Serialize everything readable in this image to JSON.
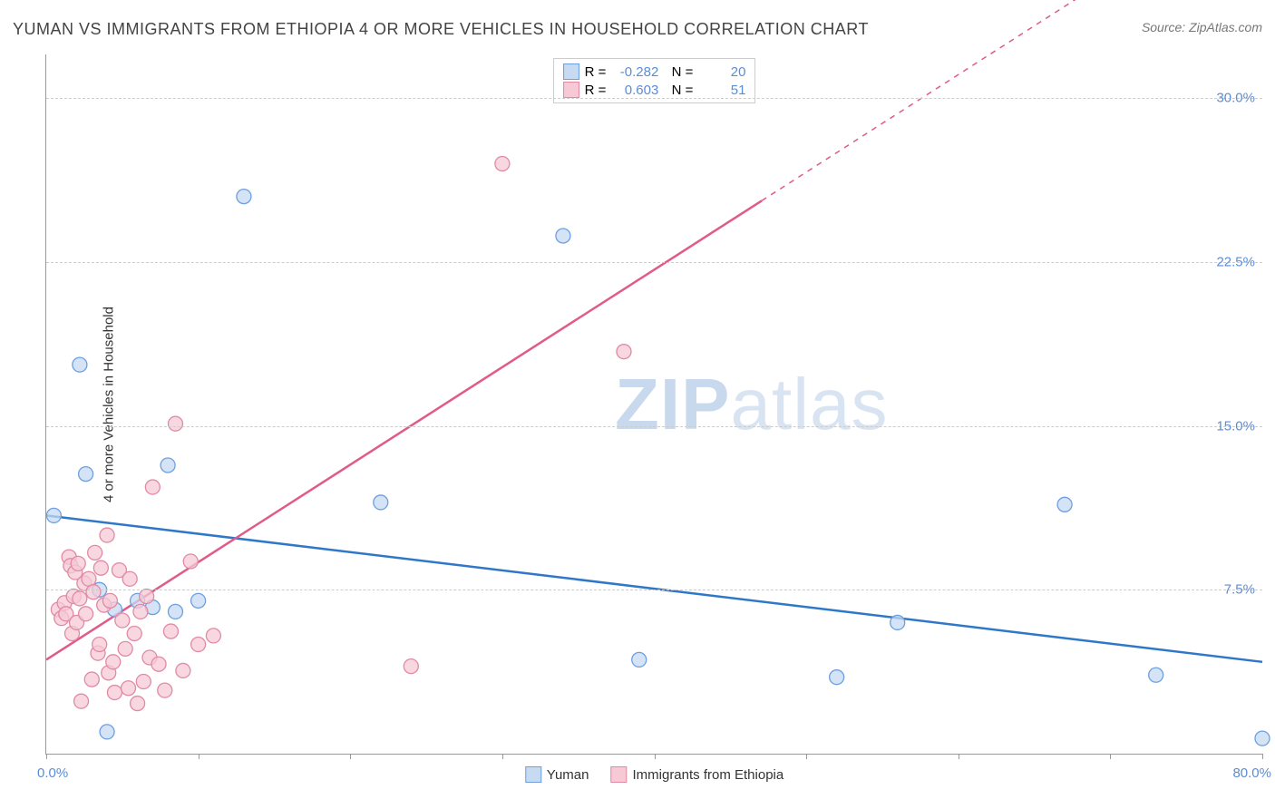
{
  "title": "YUMAN VS IMMIGRANTS FROM ETHIOPIA 4 OR MORE VEHICLES IN HOUSEHOLD CORRELATION CHART",
  "source": "Source: ZipAtlas.com",
  "ylabel": "4 or more Vehicles in Household",
  "watermark": {
    "prefix": "ZIP",
    "suffix": "atlas"
  },
  "chart": {
    "type": "scatter",
    "xlim": [
      0,
      80
    ],
    "ylim": [
      0,
      32
    ],
    "xticks_minor_pct": [
      0,
      10,
      20,
      30,
      40,
      50,
      60,
      70,
      80
    ],
    "yticks": [
      7.5,
      15.0,
      22.5,
      30.0
    ],
    "ytick_labels": [
      "7.5%",
      "15.0%",
      "22.5%",
      "30.0%"
    ],
    "xlabel_min": "0.0%",
    "xlabel_max": "80.0%",
    "background_color": "#ffffff",
    "grid_color": "#cccccc",
    "series": [
      {
        "name": "Yuman",
        "marker_fill": "#c6daf2",
        "marker_stroke": "#6d9fe0",
        "marker_r": 8,
        "line_color": "#2f77c9",
        "line_width": 2.5,
        "r_value": "-0.282",
        "n_value": "20",
        "trend": {
          "x0": 0,
          "y0": 10.9,
          "x1": 80,
          "y1": 4.2
        },
        "points": [
          [
            0.5,
            10.9
          ],
          [
            2.2,
            17.8
          ],
          [
            2.6,
            12.8
          ],
          [
            4.0,
            1.0
          ],
          [
            3.5,
            7.5
          ],
          [
            4.5,
            6.6
          ],
          [
            6.0,
            7.0
          ],
          [
            7.0,
            6.7
          ],
          [
            8.0,
            13.2
          ],
          [
            8.5,
            6.5
          ],
          [
            10.0,
            7.0
          ],
          [
            13.0,
            25.5
          ],
          [
            22.0,
            11.5
          ],
          [
            34.0,
            23.7
          ],
          [
            39.0,
            4.3
          ],
          [
            52.0,
            3.5
          ],
          [
            56.0,
            6.0
          ],
          [
            67.0,
            11.4
          ],
          [
            73.0,
            3.6
          ],
          [
            80.0,
            0.7
          ]
        ]
      },
      {
        "name": "Immigrants from Ethiopia",
        "marker_fill": "#f6c9d5",
        "marker_stroke": "#e18aa5",
        "marker_r": 8,
        "line_color": "#e05a8a",
        "line_width": 2.5,
        "r_value": "0.603",
        "n_value": "51",
        "trend": {
          "x0": 0,
          "y0": 4.3,
          "x1": 80,
          "y1": 40.0
        },
        "points": [
          [
            0.8,
            6.6
          ],
          [
            1.0,
            6.2
          ],
          [
            1.2,
            6.9
          ],
          [
            1.3,
            6.4
          ],
          [
            1.5,
            9.0
          ],
          [
            1.6,
            8.6
          ],
          [
            1.7,
            5.5
          ],
          [
            1.8,
            7.2
          ],
          [
            1.9,
            8.3
          ],
          [
            2.0,
            6.0
          ],
          [
            2.1,
            8.7
          ],
          [
            2.2,
            7.1
          ],
          [
            2.3,
            2.4
          ],
          [
            2.5,
            7.8
          ],
          [
            2.6,
            6.4
          ],
          [
            2.8,
            8.0
          ],
          [
            3.0,
            3.4
          ],
          [
            3.1,
            7.4
          ],
          [
            3.2,
            9.2
          ],
          [
            3.4,
            4.6
          ],
          [
            3.5,
            5.0
          ],
          [
            3.6,
            8.5
          ],
          [
            3.8,
            6.8
          ],
          [
            4.0,
            10.0
          ],
          [
            4.1,
            3.7
          ],
          [
            4.2,
            7.0
          ],
          [
            4.4,
            4.2
          ],
          [
            4.5,
            2.8
          ],
          [
            4.8,
            8.4
          ],
          [
            5.0,
            6.1
          ],
          [
            5.2,
            4.8
          ],
          [
            5.4,
            3.0
          ],
          [
            5.5,
            8.0
          ],
          [
            5.8,
            5.5
          ],
          [
            6.0,
            2.3
          ],
          [
            6.2,
            6.5
          ],
          [
            6.4,
            3.3
          ],
          [
            6.6,
            7.2
          ],
          [
            6.8,
            4.4
          ],
          [
            7.0,
            12.2
          ],
          [
            7.4,
            4.1
          ],
          [
            7.8,
            2.9
          ],
          [
            8.2,
            5.6
          ],
          [
            8.5,
            15.1
          ],
          [
            9.0,
            3.8
          ],
          [
            9.5,
            8.8
          ],
          [
            10.0,
            5.0
          ],
          [
            11.0,
            5.4
          ],
          [
            24.0,
            4.0
          ],
          [
            30.0,
            27.0
          ],
          [
            38.0,
            18.4
          ]
        ]
      }
    ]
  },
  "legend_bottom": [
    {
      "label": "Yuman",
      "fill": "#c6daf2",
      "stroke": "#6d9fe0"
    },
    {
      "label": "Immigrants from Ethiopia",
      "fill": "#f6c9d5",
      "stroke": "#e18aa5"
    }
  ]
}
